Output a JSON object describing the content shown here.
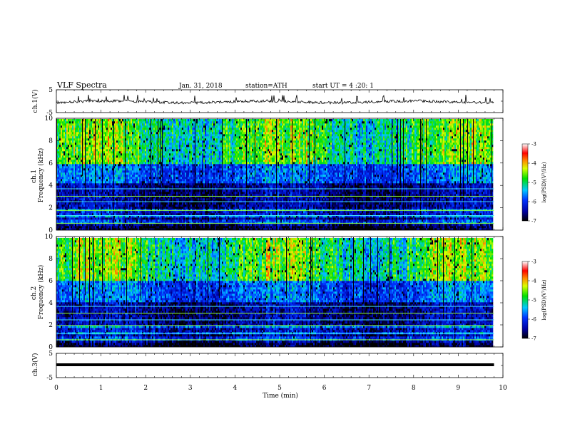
{
  "header": {
    "title": "VLF Spectra",
    "date": "Jan. 31, 2018",
    "station": "station=ATH",
    "start": "start UT = 4 :20: 1"
  },
  "chart_data": [
    {
      "type": "line",
      "name": "ch1-waveform",
      "ylabel": "ch.1(V)",
      "ylim": [
        -5,
        5
      ],
      "yticks": [
        "5",
        "-5"
      ],
      "xlim": [
        0,
        10
      ]
    },
    {
      "type": "heatmap",
      "name": "ch1-spectrogram",
      "ylabel": "ch.1 Frequency (kHz)",
      "ylim": [
        0,
        10
      ],
      "yticks": [
        "0",
        "2",
        "4",
        "6",
        "8",
        "10"
      ],
      "xlim": [
        0,
        9.8
      ]
    },
    {
      "type": "heatmap",
      "name": "ch2-spectrogram",
      "ylabel": "ch.2 Frequency (kHz)",
      "ylim": [
        0,
        10
      ],
      "yticks": [
        "0",
        "2",
        "4",
        "6",
        "8",
        "10"
      ],
      "xlim": [
        0,
        9.8
      ]
    },
    {
      "type": "line",
      "name": "ch3-waveform",
      "ylabel": "ch.3(V)",
      "ylim": [
        -5,
        5
      ],
      "yticks": [
        "5",
        "-5"
      ],
      "xlim": [
        0,
        10
      ]
    }
  ],
  "xaxis": {
    "label": "Time (min)",
    "ticks": [
      "0",
      "1",
      "2",
      "3",
      "4",
      "5",
      "6",
      "7",
      "8",
      "9",
      "10"
    ]
  },
  "colorbar": {
    "label": "log(PSD)(V²/Hz)",
    "ticks": [
      "-3",
      "-4",
      "-5",
      "-6",
      "-7"
    ],
    "range": [
      -7,
      -3
    ]
  },
  "colors": {
    "background": "#ffffff",
    "axis": "#000000"
  }
}
